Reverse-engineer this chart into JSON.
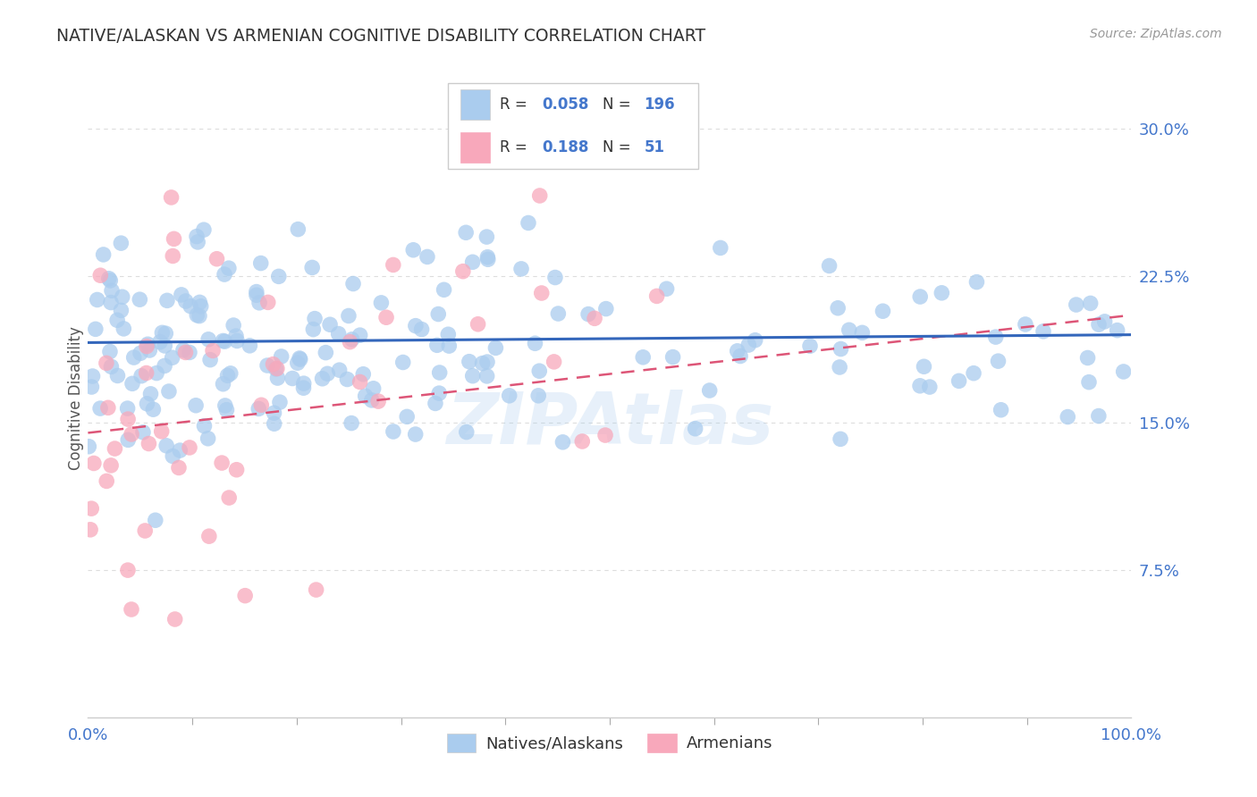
{
  "title": "NATIVE/ALASKAN VS ARMENIAN COGNITIVE DISABILITY CORRELATION CHART",
  "source": "Source: ZipAtlas.com",
  "ylabel": "Cognitive Disability",
  "xlim": [
    0.0,
    1.0
  ],
  "ylim": [
    0.0,
    0.325
  ],
  "yticks": [
    0.075,
    0.15,
    0.225,
    0.3
  ],
  "ytick_labels": [
    "7.5%",
    "15.0%",
    "22.5%",
    "30.0%"
  ],
  "legend_label1": "Natives/Alaskans",
  "legend_label2": "Armenians",
  "blue_color": "#aaccee",
  "blue_line_color": "#3366bb",
  "pink_color": "#f8a8bb",
  "pink_line_color": "#dd5577",
  "blue_r": 0.058,
  "blue_n": 196,
  "pink_r": 0.188,
  "pink_n": 51,
  "grid_color": "#dddddd",
  "background_color": "#ffffff",
  "title_color": "#333333",
  "axis_color": "#4477cc",
  "watermark": "ZIPAtlas",
  "legend_r1_val": "0.058",
  "legend_n1_val": "196",
  "legend_r2_val": "0.188",
  "legend_n2_val": "51"
}
